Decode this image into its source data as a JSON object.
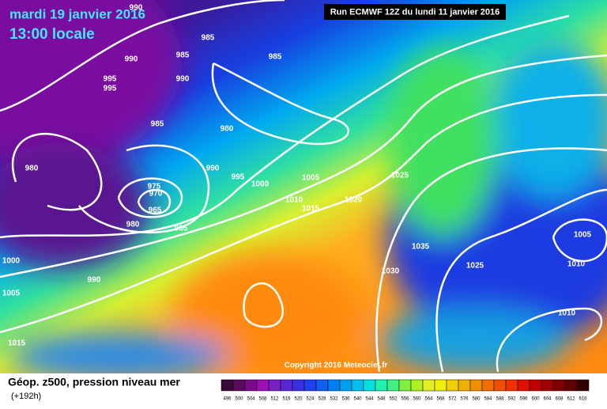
{
  "header": {
    "date": "mardi 19 janvier 2016",
    "time": "13:00 locale",
    "run": "Run ECMWF 12Z du lundi 11 janvier 2016"
  },
  "copyright": "Copyright 2016 Meteociel.fr",
  "legend": {
    "title": "Géop. z500, pression niveau mer",
    "lead": "(+192h)",
    "scale": [
      496,
      500,
      504,
      508,
      512,
      516,
      520,
      524,
      528,
      532,
      536,
      540,
      544,
      548,
      552,
      556,
      560,
      564,
      568,
      572,
      576,
      580,
      584,
      588,
      592,
      596,
      600,
      604,
      608,
      612,
      616
    ]
  },
  "isobar_labels": [
    990,
    985,
    985,
    990,
    995,
    995,
    990,
    985,
    985,
    980,
    980,
    975,
    970,
    965,
    980,
    985,
    990,
    995,
    1000,
    1005,
    1010,
    1015,
    1020,
    1025,
    1035,
    1030,
    1025,
    1005,
    1010,
    1010,
    1000,
    990,
    1005,
    1015
  ]
}
